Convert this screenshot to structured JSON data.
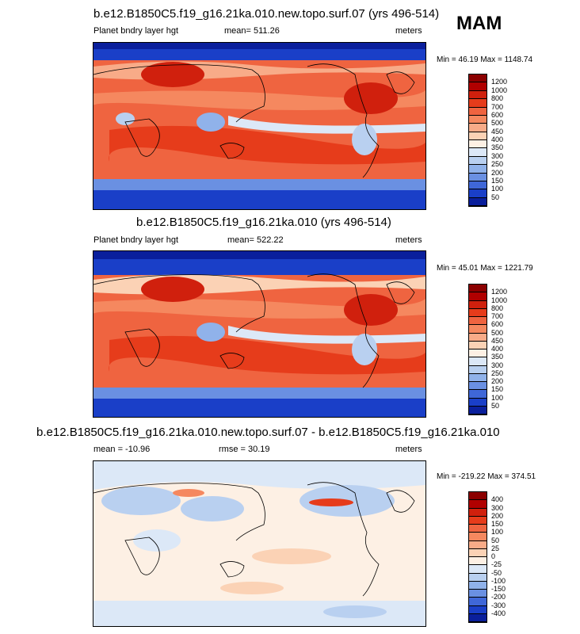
{
  "season": "MAM",
  "panels": [
    {
      "title": "b.e12.B1850C5.f19_g16.21ka.010.new.topo.surf.07 (yrs 496-514)",
      "left_label": "Planet bndry layer hgt",
      "center_label": "mean= 511.26",
      "right_label": "meters",
      "minmax": "Min =  46.19 Max = 1148.74",
      "colorbar_labels": [
        "1200",
        "1000",
        "800",
        "700",
        "600",
        "500",
        "450",
        "400",
        "350",
        "300",
        "250",
        "200",
        "150",
        "100",
        "50"
      ],
      "colorbar_colors": [
        "#8b0000",
        "#b00000",
        "#d0200d",
        "#e63c1b",
        "#ef6440",
        "#f5885f",
        "#f8ab88",
        "#fbd2b5",
        "#fdf0e4",
        "#dce8f7",
        "#b9d0f0",
        "#90b2ea",
        "#6a90e2",
        "#3f67d8",
        "#1a3fc8",
        "#0a1f9c"
      ]
    },
    {
      "title": "b.e12.B1850C5.f19_g16.21ka.010 (yrs 496-514)",
      "left_label": "Planet bndry layer hgt",
      "center_label": "mean= 522.22",
      "right_label": "meters",
      "minmax": "Min =  45.01 Max = 1221.79",
      "colorbar_labels": [
        "1200",
        "1000",
        "800",
        "700",
        "600",
        "500",
        "450",
        "400",
        "350",
        "300",
        "250",
        "200",
        "150",
        "100",
        "50"
      ],
      "colorbar_colors": [
        "#8b0000",
        "#b00000",
        "#d0200d",
        "#e63c1b",
        "#ef6440",
        "#f5885f",
        "#f8ab88",
        "#fbd2b5",
        "#fdf0e4",
        "#dce8f7",
        "#b9d0f0",
        "#90b2ea",
        "#6a90e2",
        "#3f67d8",
        "#1a3fc8",
        "#0a1f9c"
      ]
    },
    {
      "title": "b.e12.B1850C5.f19_g16.21ka.010.new.topo.surf.07 - b.e12.B1850C5.f19_g16.21ka.010",
      "left_label": "mean = -10.96",
      "center_label": "rmse =  30.19",
      "right_label": "meters",
      "minmax": "Min = -219.22 Max = 374.51",
      "colorbar_labels": [
        "400",
        "300",
        "200",
        "150",
        "100",
        "50",
        "25",
        "0",
        "-25",
        "-50",
        "-100",
        "-150",
        "-200",
        "-300",
        "-400"
      ],
      "colorbar_colors": [
        "#8b0000",
        "#b00000",
        "#d0200d",
        "#e63c1b",
        "#ef6440",
        "#f5885f",
        "#f8ab88",
        "#fbd2b5",
        "#fdf0e4",
        "#dce8f7",
        "#b9d0f0",
        "#90b2ea",
        "#6a90e2",
        "#3f67d8",
        "#1a3fc8",
        "#0a1f9c"
      ]
    }
  ]
}
